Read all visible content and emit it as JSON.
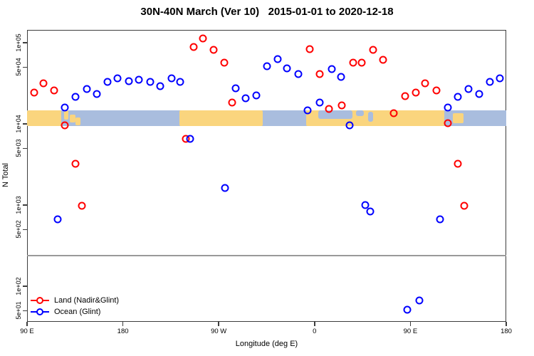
{
  "page": {
    "background": "#ffffff"
  },
  "chart_data": {
    "type": "scatter",
    "title": "30N-40N March (Ver 10)   2015-01-01 to 2020-12-18",
    "xlabel": "Longitude (deg E)",
    "ylabel": "N Total",
    "x_axis": {
      "description": "Longitude axis starting at 90E and wrapping eastward 450 degrees",
      "span_deg": 450,
      "ticks": [
        {
          "label": "90 E",
          "deg": 0
        },
        {
          "label": "180",
          "deg": 90
        },
        {
          "label": "90 W",
          "deg": 180
        },
        {
          "label": "0",
          "deg": 270
        },
        {
          "label": "90 E",
          "deg": 360
        },
        {
          "label": "180",
          "deg": 450
        }
      ]
    },
    "y_axis": {
      "scale": "log",
      "ticks": [
        {
          "label": "1e+05",
          "value": 100000
        },
        {
          "label": "5e+04",
          "value": 50000
        },
        {
          "label": "1e+04",
          "value": 10000
        },
        {
          "label": "5e+03",
          "value": 5000
        },
        {
          "label": "1e+03",
          "value": 1000
        },
        {
          "label": "5e+02",
          "value": 500
        },
        {
          "label": "1e+02",
          "value": 100
        },
        {
          "label": "5e+01",
          "value": 50
        }
      ]
    },
    "reference_line": {
      "value": 240,
      "color": "#9a9a9a"
    },
    "map_band": {
      "description": "30N-40N world-map strip drawn across the 1e+04 level",
      "value_top": 14700,
      "value_bottom": 9400,
      "ocean_color": "#a9bdde",
      "land_color": "#fad57e",
      "land_segments": [
        {
          "from_deg": 0,
          "to_deg": 32,
          "top_frac": 0,
          "h_frac": 1
        },
        {
          "from_deg": 34.8,
          "to_deg": 38.8,
          "top_frac": 0,
          "h_frac": 0.6
        },
        {
          "from_deg": 40,
          "to_deg": 45.5,
          "top_frac": 0.25,
          "h_frac": 0.5
        },
        {
          "from_deg": 45.5,
          "to_deg": 50,
          "top_frac": 0.45,
          "h_frac": 0.5
        },
        {
          "from_deg": 143,
          "to_deg": 221,
          "top_frac": 0,
          "h_frac": 1
        },
        {
          "from_deg": 262,
          "to_deg": 392,
          "top_frac": 0,
          "h_frac": 1
        },
        {
          "from_deg": 400,
          "to_deg": 410,
          "top_frac": 0.2,
          "h_frac": 0.6
        }
      ],
      "water_overlays": [
        {
          "from_deg": 273.5,
          "to_deg": 305.6,
          "top_frac": 0,
          "h_frac": 0.55
        },
        {
          "from_deg": 309,
          "to_deg": 316,
          "top_frac": 0,
          "h_frac": 0.35
        },
        {
          "from_deg": 320,
          "to_deg": 325,
          "top_frac": 0.1,
          "h_frac": 0.65
        }
      ]
    },
    "series": [
      {
        "name": "Land (Nadir&Glint)",
        "color": "#ff0000",
        "marker": "open-circle",
        "points": [
          [
            6.7,
            24300
          ],
          [
            15.4,
            31600
          ],
          [
            25.4,
            25800
          ],
          [
            35.4,
            9600
          ],
          [
            45.5,
            3230
          ],
          [
            51.5,
            980
          ],
          [
            149.1,
            6550
          ],
          [
            156.5,
            88500
          ],
          [
            165.2,
            112000
          ],
          [
            175.2,
            82000
          ],
          [
            185.2,
            57000
          ],
          [
            192.6,
            18300
          ],
          [
            265.4,
            83000
          ],
          [
            274.8,
            41000
          ],
          [
            283.5,
            15300
          ],
          [
            295.5,
            16900
          ],
          [
            306.2,
            57000
          ],
          [
            314.3,
            57000
          ],
          [
            325.0,
            82000
          ],
          [
            334.3,
            61500
          ],
          [
            344.4,
            13500
          ],
          [
            355.1,
            22000
          ],
          [
            365.1,
            24300
          ],
          [
            373.7,
            31600
          ],
          [
            384.4,
            25800
          ],
          [
            395.2,
            10200
          ],
          [
            404.5,
            3230
          ],
          [
            410.5,
            980
          ]
        ]
      },
      {
        "name": "Ocean (Glint)",
        "color": "#0000ff",
        "marker": "open-circle",
        "points": [
          [
            28.8,
            670
          ],
          [
            35.4,
            15900
          ],
          [
            45.5,
            21500
          ],
          [
            56.2,
            26900
          ],
          [
            65.5,
            23300
          ],
          [
            75.6,
            33000
          ],
          [
            84.9,
            36400
          ],
          [
            95.6,
            33600
          ],
          [
            105.0,
            35000
          ],
          [
            115.7,
            33000
          ],
          [
            125.0,
            29200
          ],
          [
            135.7,
            36400
          ],
          [
            143.8,
            33000
          ],
          [
            153.1,
            6550
          ],
          [
            185.9,
            1620
          ],
          [
            195.9,
            27500
          ],
          [
            205.3,
            20700
          ],
          [
            215.3,
            22400
          ],
          [
            225.3,
            51000
          ],
          [
            235.4,
            63000
          ],
          [
            244.0,
            48300
          ],
          [
            254.7,
            41000
          ],
          [
            263.4,
            14700
          ],
          [
            274.8,
            18300
          ],
          [
            286.2,
            47000
          ],
          [
            294.9,
            38000
          ],
          [
            302.9,
            9600
          ],
          [
            317.6,
            1000
          ],
          [
            322.3,
            830
          ],
          [
            357.1,
            51
          ],
          [
            368.4,
            67
          ],
          [
            387.8,
            670
          ],
          [
            395.2,
            15900
          ],
          [
            404.5,
            21500
          ],
          [
            414.5,
            26900
          ],
          [
            424.5,
            23300
          ],
          [
            434.6,
            33000
          ],
          [
            444.0,
            36400
          ]
        ]
      }
    ],
    "legend": {
      "position": "bottom-left",
      "entries": [
        {
          "label": "Land (Nadir&Glint)",
          "color": "#ff0000"
        },
        {
          "label": "Ocean (Glint)",
          "color": "#0000ff"
        }
      ]
    }
  }
}
